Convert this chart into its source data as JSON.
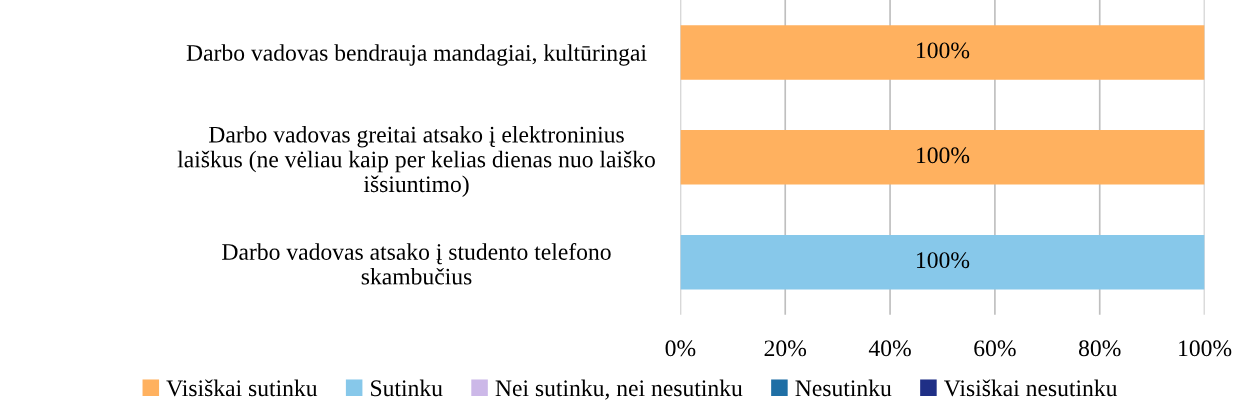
{
  "chart_data": {
    "type": "bar",
    "orientation": "horizontal",
    "stacked": true,
    "categories": [
      "Darbo vadovas bendrauja mandagiai, kultūringai",
      "Darbo vadovas greitai atsako į elektroninius\nlaiškus (ne vėliau kaip per kelias dienas nuo laiško\nišsiuntimo)",
      "Darbo vadovas atsako į studento telefono\nskambučius"
    ],
    "series": [
      {
        "name": "Visiškai sutinku",
        "color": "#ffb15f",
        "values": [
          100,
          100,
          0
        ],
        "value_labels": [
          "100%",
          "100%",
          null
        ]
      },
      {
        "name": "Sutinku",
        "color": "#87c8ea",
        "values": [
          0,
          0,
          100
        ],
        "value_labels": [
          null,
          null,
          "100%"
        ]
      },
      {
        "name": "Nei sutinku, nei nesutinku",
        "color": "#ccb8e8",
        "values": [
          0,
          0,
          0
        ]
      },
      {
        "name": "Nesutinku",
        "color": "#1f6fa5",
        "values": [
          0,
          0,
          0
        ]
      },
      {
        "name": "Visiškai nesutinku",
        "color": "#1f2f86",
        "values": [
          0,
          0,
          0
        ]
      }
    ],
    "xlim": [
      0,
      100
    ],
    "xticks": [
      {
        "value": 0,
        "label": "0%"
      },
      {
        "value": 20,
        "label": "20%"
      },
      {
        "value": 40,
        "label": "40%"
      },
      {
        "value": 60,
        "label": "60%"
      },
      {
        "value": 80,
        "label": "80%"
      },
      {
        "value": 100,
        "label": "100%"
      }
    ],
    "grid": "x",
    "legend": "bottom"
  }
}
